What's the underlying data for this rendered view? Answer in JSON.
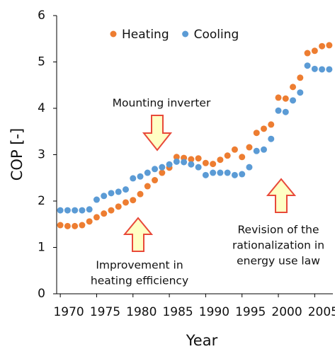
{
  "chart_data": {
    "type": "scatter",
    "x_label": "Year",
    "y_label": "COP [-]",
    "x": [
      1970,
      1971,
      1972,
      1973,
      1974,
      1975,
      1976,
      1977,
      1978,
      1979,
      1980,
      1981,
      1982,
      1983,
      1984,
      1985,
      1986,
      1987,
      1988,
      1989,
      1990,
      1991,
      1992,
      1993,
      1994,
      1995,
      1996,
      1997,
      1998,
      1999,
      2000,
      2001,
      2002,
      2003,
      2004,
      2005,
      2006,
      2007
    ],
    "series": [
      {
        "name": "Heating",
        "color": "#ed7d31",
        "values": [
          1.48,
          1.46,
          1.46,
          1.48,
          1.56,
          1.65,
          1.73,
          1.8,
          1.88,
          1.97,
          2.02,
          2.15,
          2.32,
          2.45,
          2.61,
          2.72,
          2.95,
          2.93,
          2.9,
          2.92,
          2.82,
          2.8,
          2.89,
          2.98,
          3.11,
          2.95,
          3.16,
          3.47,
          3.56,
          3.65,
          4.23,
          4.21,
          4.46,
          4.66,
          5.19,
          5.24,
          5.34,
          5.36
        ]
      },
      {
        "name": "Cooling",
        "color": "#5b9bd5",
        "values": [
          1.8,
          1.8,
          1.8,
          1.8,
          1.82,
          2.03,
          2.11,
          2.17,
          2.2,
          2.25,
          2.49,
          2.53,
          2.61,
          2.69,
          2.73,
          2.79,
          2.85,
          2.84,
          2.79,
          2.73,
          2.56,
          2.61,
          2.61,
          2.61,
          2.56,
          2.58,
          2.73,
          3.08,
          3.11,
          3.34,
          3.95,
          3.92,
          4.17,
          4.34,
          4.92,
          4.85,
          4.84,
          4.84
        ]
      }
    ],
    "xlim": [
      1969.5,
      2007.5
    ],
    "xticks": [
      1970,
      1975,
      1980,
      1985,
      1990,
      1995,
      2000,
      2005
    ],
    "ylim": [
      0,
      6
    ],
    "yticks": [
      0,
      1,
      2,
      3,
      4,
      5,
      6
    ],
    "legend": "top-left",
    "annotations": [
      {
        "lines": [
          "Mounting inverter"
        ]
      },
      {
        "lines": [
          "Improvement in",
          "heating efficiency"
        ]
      },
      {
        "lines": [
          "Revision of the",
          "rationalization in",
          "energy use law"
        ]
      }
    ]
  }
}
